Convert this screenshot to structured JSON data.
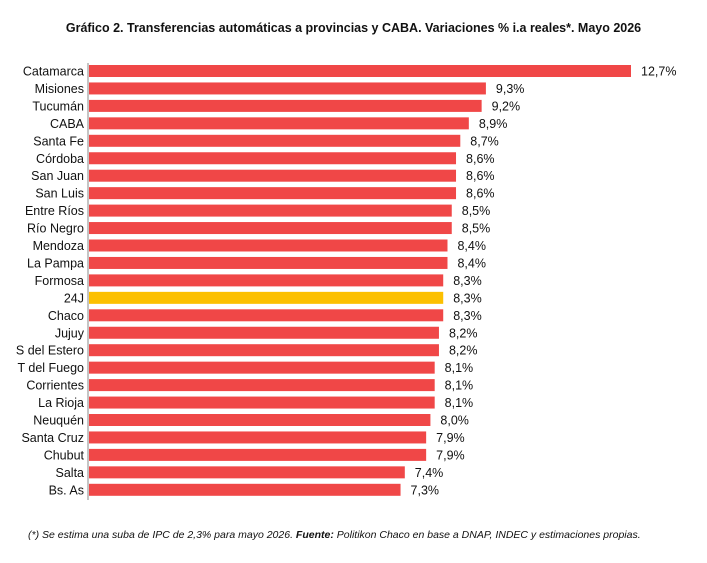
{
  "chart_data": {
    "type": "bar",
    "orientation": "horizontal",
    "title": "Gráfico 2. Transferencias automáticas a provincias y CABA. Variaciones % i.a reales*. Mayo 2026",
    "categories": [
      "Catamarca",
      "Misiones",
      "Tucumán",
      "CABA",
      "Santa Fe",
      "Córdoba",
      "San Juan",
      "San Luis",
      "Entre Ríos",
      "Río Negro",
      "Mendoza",
      "La Pampa",
      "Formosa",
      "24J",
      "Chaco",
      "Jujuy",
      "S del Estero",
      "T del Fuego",
      "Corrientes",
      "La Rioja",
      "Neuquén",
      "Santa Cruz",
      "Chubut",
      "Salta",
      "Bs. As"
    ],
    "values": [
      12.7,
      9.3,
      9.2,
      8.9,
      8.7,
      8.6,
      8.6,
      8.6,
      8.5,
      8.5,
      8.4,
      8.4,
      8.3,
      8.3,
      8.3,
      8.2,
      8.2,
      8.1,
      8.1,
      8.1,
      8.0,
      7.9,
      7.9,
      7.4,
      7.3
    ],
    "value_labels": [
      "12,7%",
      "9,3%",
      "9,2%",
      "8,9%",
      "8,7%",
      "8,6%",
      "8,6%",
      "8,6%",
      "8,5%",
      "8,5%",
      "8,4%",
      "8,4%",
      "8,3%",
      "8,3%",
      "8,3%",
      "8,2%",
      "8,2%",
      "8,1%",
      "8,1%",
      "8,1%",
      "8,0%",
      "7,9%",
      "7,9%",
      "7,4%",
      "7,3%"
    ],
    "highlight_category": "24J",
    "xlim": [
      0,
      12.7
    ],
    "grid": false,
    "legend": "none",
    "colors": {
      "bar": "#f04747",
      "highlight": "#fcc000",
      "axis": "#888888"
    }
  },
  "footnote": {
    "note": "(*) Se estima una suba de IPC de 2,3% para mayo 2026.",
    "source_label": "Fuente:",
    "source_text": "Politikon Chaco en base a DNAP, INDEC y estimaciones propias."
  }
}
